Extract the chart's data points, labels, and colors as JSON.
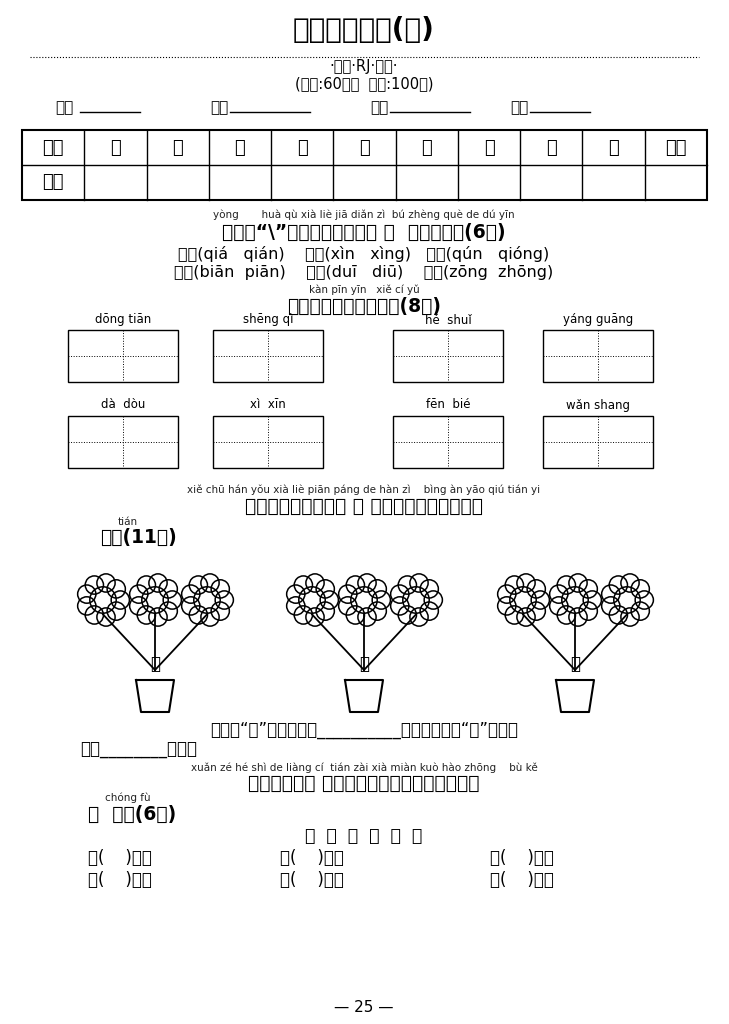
{
  "title": "期末押题密卷(四)",
  "subtitle1": "·一语·RJ·下册·",
  "subtitle2": "(时间:60分钟  满分:100分)",
  "info_line_parts": [
    "学校",
    "年级",
    "班级",
    "姓名"
  ],
  "table_headers": [
    "题号",
    "一",
    "二",
    "三",
    "四",
    "五",
    "六",
    "七",
    "八",
    "九",
    "总分"
  ],
  "table_row1": "得分",
  "section1_pinyin": "yòng       huà qù xià liè jiā diǎn zì  bú zhèng què de dú yīn",
  "section1_title": "一、用“\\”划去下列加点字不 正  确的读音。(6分)",
  "section1_item1": "钒币(qiá   qián)    相信(xìn   xìng)   裙子(qún   qióng)",
  "section1_item2": "鸭炮(biān  piān)    丢掌(duī   diū)    踪迹(zōng  zhōng)",
  "section2_pinyin": "kàn pīn yīn   xiě cí yǔ",
  "section2_title": "二、看拼音，写词语。(8分)",
  "section2_row1_pinyins": [
    "dōng tiān",
    "shēng qì",
    "hé  shuǐ",
    "yáng guāng"
  ],
  "section2_row2_pinyins": [
    "dà  dòu",
    "xì  xīn",
    "fēn  bié",
    "wǎn shang"
  ],
  "section3_pinyin": "xiě chū hán yǒu xià liè piān páng de hàn zì    bìng àn yāo qiú tián yi",
  "section3_title1": "三、写出含有下列偏 旁 的汉字，并按要求填一",
  "section3_title2_pinyin": "tián",
  "section3_title2": "填。(11分)",
  "section3_chars": [
    "扌",
    "虫",
    "寸"
  ],
  "section3_text1": "偏旁为“扌”的字大多和__________有关，偏旁为“虫”的字大",
  "section3_text2": "多和________有关。",
  "section4_pinyin": "xuǎn zé hé shì de liàng cí  tián zài xià miàn kuò hào zhōng    bù kě",
  "section4_title1": "四、选择合适 的量词填在下面括号中。（不可",
  "section4_title2_pinyin": "chóng fù",
  "section4_title2": "重  复）(6分)",
  "section4_words": "片  个  辆  阵  座  张",
  "section4_row1": [
    "一(    )木瓜",
    "一(    )叶子",
    "一(    )汽车"
  ],
  "section4_row2": [
    "一(    )花坛",
    "一(    )雷声",
    "一(    )图画"
  ],
  "page_num": "— 25 —",
  "bg_color": "#ffffff",
  "text_color": "#000000"
}
